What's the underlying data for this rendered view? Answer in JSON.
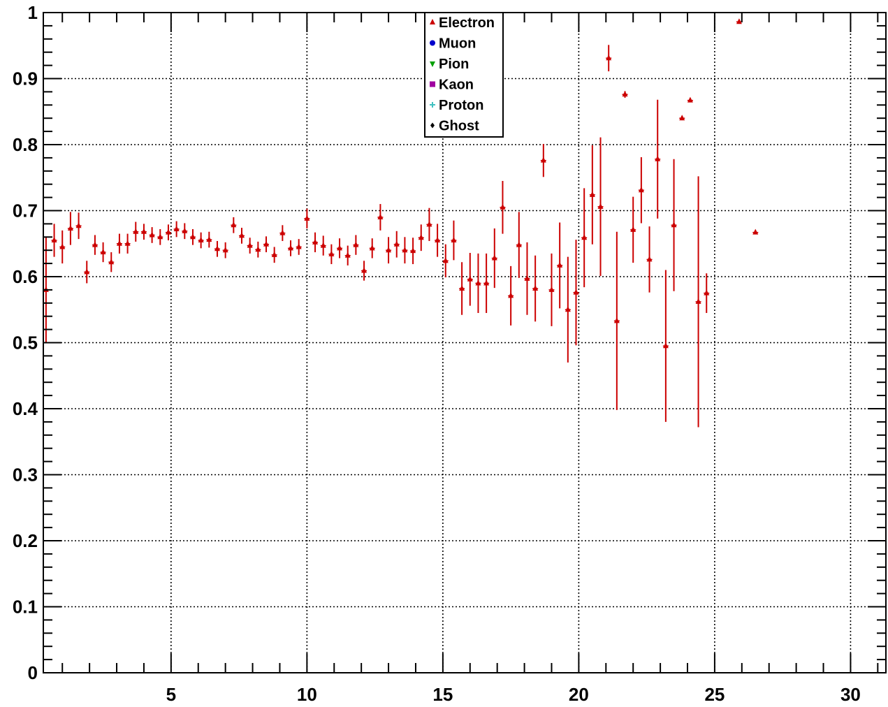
{
  "chart_data": {
    "type": "scatter",
    "title": "",
    "xlabel": "",
    "ylabel": "",
    "xlim": [
      0.3,
      31.3
    ],
    "ylim": [
      0,
      1
    ],
    "grid": true,
    "legend_position": "top-center",
    "xticks": [
      5,
      10,
      15,
      20,
      25,
      30
    ],
    "xtick_labels": [
      "5",
      "10",
      "15",
      "20",
      "25",
      "30"
    ],
    "yticks": [
      0,
      0.1,
      0.2,
      0.3,
      0.4,
      0.5,
      0.6,
      0.7,
      0.8,
      0.9,
      1
    ],
    "ytick_labels": [
      "0",
      "0.1",
      "0.2",
      "0.3",
      "0.4",
      "0.5",
      "0.6",
      "0.7",
      "0.8",
      "0.9",
      "1"
    ],
    "series": [
      {
        "name": "Electron",
        "color": "#cc0000",
        "marker": "triangle-up",
        "x": [
          0.4,
          0.7,
          1.0,
          1.3,
          1.6,
          1.9,
          2.2,
          2.5,
          2.8,
          3.1,
          3.4,
          3.7,
          4.0,
          4.3,
          4.6,
          4.9,
          5.2,
          5.5,
          5.8,
          6.1,
          6.4,
          6.7,
          7.0,
          7.3,
          7.6,
          7.9,
          8.2,
          8.5,
          8.8,
          9.1,
          9.4,
          9.7,
          10.0,
          10.3,
          10.6,
          10.9,
          11.2,
          11.5,
          11.8,
          12.1,
          12.4,
          12.7,
          13.0,
          13.3,
          13.6,
          13.9,
          14.2,
          14.5,
          14.8,
          15.1,
          15.4,
          15.7,
          16.0,
          16.3,
          16.6,
          16.9,
          17.2,
          17.5,
          17.8,
          18.1,
          18.4,
          18.7,
          19.0,
          19.3,
          19.6,
          19.9,
          20.2,
          20.5,
          20.8,
          21.1,
          21.4,
          21.7,
          22.0,
          22.3,
          22.6,
          22.9,
          23.2,
          23.5,
          23.8,
          24.1,
          24.4,
          24.7,
          25.0,
          25.3,
          25.6,
          25.9,
          26.2,
          26.5,
          26.8,
          27.1,
          27.4,
          27.7,
          28.0,
          28.3,
          28.6
        ],
        "y": [
          0.58,
          0.655,
          0.645,
          0.673,
          0.677,
          0.607,
          0.648,
          0.637,
          0.622,
          0.65,
          0.65,
          0.668,
          0.668,
          0.663,
          0.66,
          0.667,
          0.672,
          0.669,
          0.66,
          0.655,
          0.656,
          0.642,
          0.64,
          0.678,
          0.662,
          0.647,
          0.641,
          0.649,
          0.633,
          0.666,
          0.643,
          0.645,
          0.688,
          0.652,
          0.647,
          0.634,
          0.643,
          0.632,
          0.648,
          0.609,
          0.643,
          0.69,
          0.64,
          0.649,
          0.64,
          0.639,
          0.659,
          0.679,
          0.655,
          0.624,
          0.655,
          0.582,
          0.596,
          0.59,
          0.59,
          0.628,
          0.705,
          0.571,
          0.648,
          0.597,
          0.582,
          0.776,
          0.58,
          0.617,
          0.55,
          0.576,
          0.659,
          0.724,
          0.706,
          0.931,
          0.533,
          0.876,
          0.671,
          0.731,
          0.626,
          0.778,
          0.495,
          0.678,
          0.84,
          0.867,
          0.562,
          0.575,
          null,
          null,
          null,
          0.986,
          null,
          0.667,
          null,
          null,
          null,
          null,
          null,
          null,
          null
        ],
        "err": [
          0.08,
          0.025,
          0.025,
          0.025,
          0.02,
          0.017,
          0.015,
          0.015,
          0.015,
          0.015,
          0.015,
          0.015,
          0.012,
          0.012,
          0.012,
          0.012,
          0.012,
          0.012,
          0.012,
          0.012,
          0.012,
          0.012,
          0.012,
          0.012,
          0.012,
          0.012,
          0.012,
          0.012,
          0.012,
          0.012,
          0.012,
          0.012,
          0.015,
          0.015,
          0.015,
          0.015,
          0.015,
          0.015,
          0.015,
          0.015,
          0.015,
          0.02,
          0.02,
          0.02,
          0.02,
          0.02,
          0.02,
          0.025,
          0.025,
          0.025,
          0.03,
          0.04,
          0.04,
          0.045,
          0.045,
          0.045,
          0.04,
          0.045,
          0.05,
          0.055,
          0.05,
          0.025,
          0.055,
          0.065,
          0.08,
          0.08,
          0.075,
          0.075,
          0.105,
          0.02,
          0.135,
          0.005,
          0.05,
          0.05,
          0.05,
          0.09,
          0.115,
          0.1,
          0.003,
          0.003,
          0.19,
          0.03,
          0,
          0,
          0,
          0.003,
          0,
          0.003,
          0,
          0,
          0,
          0,
          0,
          0,
          0
        ]
      }
    ]
  },
  "legend": {
    "items": [
      {
        "label": "Electron",
        "color": "#cc0000",
        "marker": "triangle-up"
      },
      {
        "label": "Muon",
        "color": "#0000cc",
        "marker": "circle"
      },
      {
        "label": "Pion",
        "color": "#00a000",
        "marker": "triangle-down"
      },
      {
        "label": "Kaon",
        "color": "#a000a0",
        "marker": "square"
      },
      {
        "label": "Proton",
        "color": "#40c0c0",
        "marker": "plus"
      },
      {
        "label": "Ghost",
        "color": "#000000",
        "marker": "diamond"
      }
    ]
  }
}
